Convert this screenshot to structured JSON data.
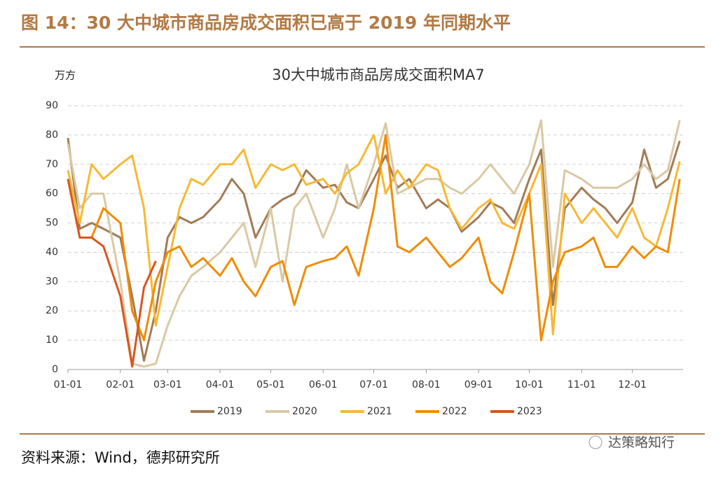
{
  "header": {
    "title": "图 14：30 大中城市商品房成交面积已高于 2019 年同期水平"
  },
  "chart_data": {
    "type": "line",
    "title": "30大中城市商品房成交面积MA7",
    "y_label": "万方",
    "x": [
      "01-01",
      "01-08",
      "01-15",
      "01-22",
      "02-01",
      "02-08",
      "02-15",
      "02-22",
      "03-01",
      "03-08",
      "03-15",
      "03-22",
      "04-01",
      "04-08",
      "04-15",
      "04-22",
      "05-01",
      "05-08",
      "05-15",
      "05-22",
      "06-01",
      "06-08",
      "06-15",
      "06-22",
      "07-01",
      "07-08",
      "07-15",
      "07-22",
      "08-01",
      "08-08",
      "08-15",
      "08-22",
      "09-01",
      "09-08",
      "09-15",
      "09-22",
      "10-01",
      "10-08",
      "10-15",
      "10-22",
      "11-01",
      "11-08",
      "11-15",
      "11-22",
      "12-01",
      "12-08",
      "12-15",
      "12-22",
      "12-29"
    ],
    "xlim": [
      "01-01",
      "12-31"
    ],
    "xticks": [
      "01-01",
      "02-01",
      "03-01",
      "04-01",
      "05-01",
      "06-01",
      "07-01",
      "08-01",
      "09-01",
      "10-01",
      "11-01",
      "12-01"
    ],
    "ylim": [
      0,
      90
    ],
    "yticks": [
      0,
      10,
      20,
      30,
      40,
      50,
      60,
      70,
      80,
      90
    ],
    "grid": true,
    "series": [
      {
        "name": "2019",
        "color": "#a27b57",
        "values": [
          79,
          48,
          50,
          48,
          45,
          25,
          3,
          20,
          45,
          52,
          50,
          52,
          58,
          65,
          60,
          45,
          55,
          58,
          60,
          68,
          62,
          63,
          57,
          55,
          65,
          73,
          62,
          65,
          55,
          58,
          55,
          47,
          52,
          57,
          55,
          50,
          65,
          75,
          22,
          55,
          62,
          58,
          55,
          50,
          57,
          75,
          62,
          65,
          78
        ]
      },
      {
        "name": "2020",
        "color": "#d9c9a3",
        "values": [
          77,
          55,
          60,
          60,
          30,
          2,
          1,
          2,
          15,
          25,
          32,
          35,
          40,
          45,
          50,
          35,
          55,
          30,
          55,
          60,
          45,
          55,
          70,
          55,
          70,
          84,
          60,
          62,
          65,
          65,
          62,
          60,
          65,
          70,
          65,
          60,
          70,
          85,
          35,
          68,
          65,
          62,
          62,
          62,
          65,
          70,
          65,
          68,
          85
        ]
      },
      {
        "name": "2021",
        "color": "#f6b935",
        "values": [
          68,
          50,
          70,
          65,
          70,
          73,
          55,
          15,
          35,
          55,
          65,
          63,
          70,
          70,
          75,
          62,
          70,
          68,
          70,
          63,
          65,
          60,
          67,
          70,
          80,
          60,
          68,
          62,
          70,
          68,
          55,
          48,
          55,
          58,
          50,
          48,
          60,
          70,
          12,
          60,
          50,
          55,
          50,
          45,
          55,
          45,
          42,
          55,
          71
        ]
      },
      {
        "name": "2022",
        "color": "#f08c05",
        "values": [
          65,
          45,
          45,
          55,
          50,
          20,
          10,
          30,
          40,
          42,
          35,
          38,
          32,
          38,
          30,
          25,
          35,
          37,
          22,
          35,
          37,
          38,
          42,
          32,
          55,
          80,
          42,
          40,
          45,
          40,
          35,
          38,
          45,
          30,
          26,
          40,
          60,
          10,
          30,
          40,
          42,
          45,
          35,
          35,
          42,
          38,
          42,
          40,
          65
        ]
      },
      {
        "name": "2023",
        "color": "#d8561d",
        "values": [
          65,
          45,
          45,
          42,
          25,
          1,
          28,
          37,
          null,
          null,
          null,
          null,
          null,
          null,
          null,
          null,
          null,
          null,
          null,
          null,
          null,
          null,
          null,
          null,
          null,
          null,
          null,
          null,
          null,
          null,
          null,
          null,
          null,
          null,
          null,
          null,
          null,
          null,
          null,
          null,
          null,
          null,
          null,
          null,
          null,
          null,
          null,
          null,
          null
        ]
      }
    ]
  },
  "footer": {
    "source": "资料来源：Wind，德邦研究所",
    "watermark": "达策略知行"
  }
}
